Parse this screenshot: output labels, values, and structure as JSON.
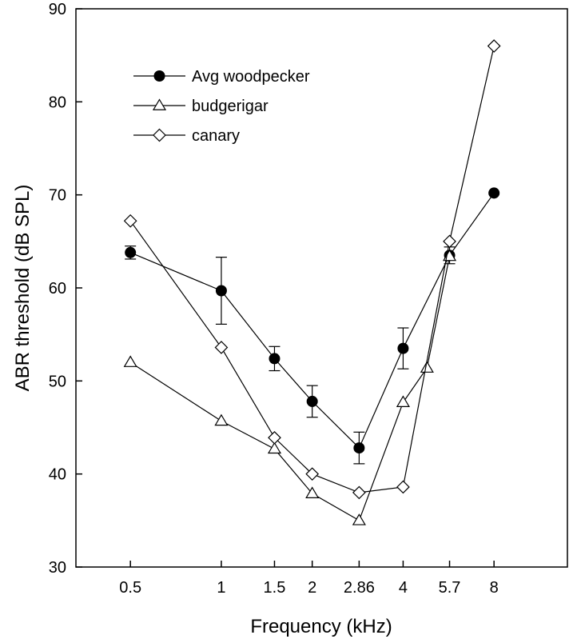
{
  "chart_data": {
    "type": "line",
    "xlabel": "Frequency (kHz)",
    "ylabel": "ABR threshold (dB SPL)",
    "x_ticks": [
      {
        "label": "0.5",
        "value": 0.5
      },
      {
        "label": "1",
        "value": 1
      },
      {
        "label": "1.5",
        "value": 1.5
      },
      {
        "label": "2",
        "value": 2
      },
      {
        "label": "2.86",
        "value": 2.86
      },
      {
        "label": "4",
        "value": 4
      },
      {
        "label": "5.7",
        "value": 5.7
      },
      {
        "label": "8",
        "value": 8
      }
    ],
    "x_scale": "log",
    "xlim": [
      0.33,
      14
    ],
    "ylim": [
      30,
      90
    ],
    "y_ticks": [
      "30",
      "40",
      "50",
      "60",
      "70",
      "80",
      "90"
    ],
    "grid": false,
    "legend_position": "top-left",
    "series": [
      {
        "name": "Avg woodpecker",
        "marker": "filled-circle",
        "points": [
          {
            "x": 0.5,
            "y": 63.8,
            "err": 0.7
          },
          {
            "x": 1,
            "y": 59.7,
            "err": 3.6
          },
          {
            "x": 1.5,
            "y": 52.4,
            "err": 1.3
          },
          {
            "x": 2,
            "y": 47.8,
            "err": 1.7
          },
          {
            "x": 2.86,
            "y": 42.8,
            "err": 1.7
          },
          {
            "x": 4,
            "y": 53.5,
            "err": 2.2
          },
          {
            "x": 5.7,
            "y": 63.5,
            "err": 0.9
          },
          {
            "x": 8,
            "y": 70.2,
            "err": 0
          }
        ]
      },
      {
        "name": "budgerigar",
        "marker": "open-triangle",
        "points": [
          {
            "x": 0.5,
            "y": 52.0
          },
          {
            "x": 1,
            "y": 45.7
          },
          {
            "x": 1.5,
            "y": 42.7
          },
          {
            "x": 2,
            "y": 37.9
          },
          {
            "x": 2.86,
            "y": 35.0
          },
          {
            "x": 4,
            "y": 47.7
          },
          {
            "x": 4.8,
            "y": 51.4
          },
          {
            "x": 5.7,
            "y": 63.4
          }
        ]
      },
      {
        "name": "canary",
        "marker": "open-diamond",
        "points": [
          {
            "x": 0.5,
            "y": 67.2
          },
          {
            "x": 1,
            "y": 53.6
          },
          {
            "x": 1.5,
            "y": 43.9
          },
          {
            "x": 2,
            "y": 40.0
          },
          {
            "x": 2.86,
            "y": 38.0
          },
          {
            "x": 4,
            "y": 38.6
          },
          {
            "x": 5.7,
            "y": 65.0
          },
          {
            "x": 8,
            "y": 86.0
          }
        ]
      }
    ]
  }
}
